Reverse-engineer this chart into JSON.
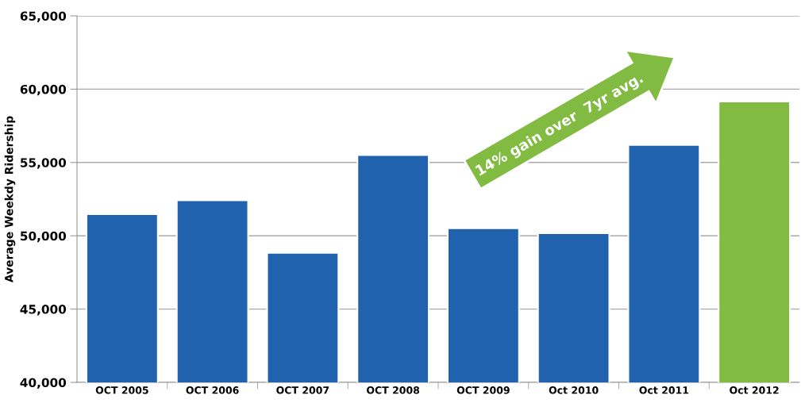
{
  "chart_data": {
    "type": "bar",
    "ylabel": "Average Weekdy Ridership",
    "categories": [
      "OCT 2005",
      "OCT 2006",
      "OCT 2007",
      "OCT 2008",
      "OCT 2009",
      "Oct 2010",
      "Oct 2011",
      "Oct 2012"
    ],
    "values": [
      51470,
      52420,
      48840,
      55510,
      50510,
      50170,
      56200,
      59160
    ],
    "colors": [
      "#2162ae",
      "#2162ae",
      "#2162ae",
      "#2162ae",
      "#2162ae",
      "#2162ae",
      "#2162ae",
      "#82bb41"
    ],
    "ylim": [
      40000,
      65000
    ],
    "yticks": [
      {
        "value": 40000,
        "label": "40,000"
      },
      {
        "value": 45000,
        "label": "45,000"
      },
      {
        "value": 50000,
        "label": "50,000"
      },
      {
        "value": 55000,
        "label": "55,000"
      },
      {
        "value": 60000,
        "label": "60,000"
      },
      {
        "value": 65000,
        "label": "65,000"
      }
    ],
    "grid": "y",
    "annotations": [
      "14% gain over  7yr avg."
    ]
  }
}
